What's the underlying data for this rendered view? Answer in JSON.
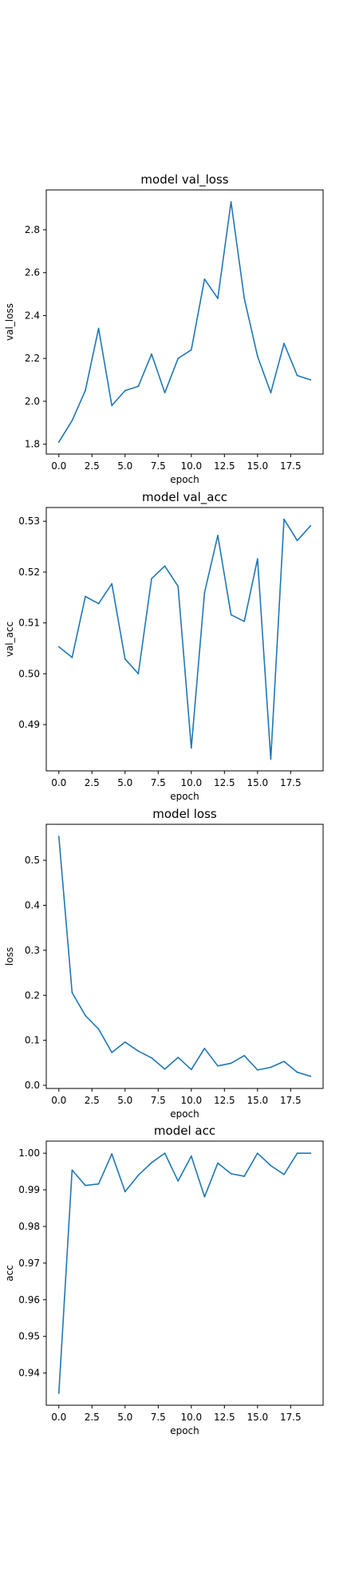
{
  "line_color": "#1f77b4",
  "chart_data": [
    {
      "type": "line",
      "title": "model val_loss",
      "xlabel": "epoch",
      "ylabel": "val_loss",
      "x": [
        0,
        1,
        2,
        3,
        4,
        5,
        6,
        7,
        8,
        9,
        10,
        11,
        12,
        13,
        14,
        15,
        16,
        17,
        18,
        19
      ],
      "series": [
        {
          "values": [
            1.81,
            1.91,
            2.05,
            2.34,
            1.98,
            2.05,
            2.07,
            2.22,
            2.04,
            2.2,
            2.24,
            2.57,
            2.48,
            2.93,
            2.48,
            2.21,
            2.04,
            2.27,
            2.12,
            2.1
          ]
        }
      ],
      "xlim": [
        -0.95,
        19.95
      ],
      "ylim": [
        1.754,
        2.986
      ],
      "xticks": [
        0.0,
        2.5,
        5.0,
        7.5,
        10.0,
        12.5,
        15.0,
        17.5
      ],
      "xtick_labels": [
        "0.0",
        "2.5",
        "5.0",
        "7.5",
        "10.0",
        "12.5",
        "15.0",
        "17.5"
      ],
      "yticks": [
        1.8,
        2.0,
        2.2,
        2.4,
        2.6,
        2.8
      ],
      "ytick_labels": [
        "1.8",
        "2.0",
        "2.2",
        "2.4",
        "2.6",
        "2.8"
      ],
      "grid": false
    },
    {
      "type": "line",
      "title": "model val_acc",
      "xlabel": "epoch",
      "ylabel": "val_acc",
      "x": [
        0,
        1,
        2,
        3,
        4,
        5,
        6,
        7,
        8,
        9,
        10,
        11,
        12,
        13,
        14,
        15,
        16,
        17,
        18,
        19
      ],
      "series": [
        {
          "values": [
            0.5053,
            0.5032,
            0.5152,
            0.5138,
            0.5177,
            0.5029,
            0.5,
            0.5187,
            0.5212,
            0.5172,
            0.4854,
            0.516,
            0.5272,
            0.5116,
            0.5103,
            0.5226,
            0.4832,
            0.5304,
            0.5262,
            0.5291
          ]
        }
      ],
      "xlim": [
        -0.95,
        19.95
      ],
      "ylim": [
        0.4809,
        0.5327
      ],
      "xticks": [
        0.0,
        2.5,
        5.0,
        7.5,
        10.0,
        12.5,
        15.0,
        17.5
      ],
      "xtick_labels": [
        "0.0",
        "2.5",
        "5.0",
        "7.5",
        "10.0",
        "12.5",
        "15.0",
        "17.5"
      ],
      "yticks": [
        0.49,
        0.5,
        0.51,
        0.52,
        0.53
      ],
      "ytick_labels": [
        "0.49",
        "0.50",
        "0.51",
        "0.52",
        "0.53"
      ],
      "grid": false
    },
    {
      "type": "line",
      "title": "model loss",
      "xlabel": "epoch",
      "ylabel": "loss",
      "x": [
        0,
        1,
        2,
        3,
        4,
        5,
        6,
        7,
        8,
        9,
        10,
        11,
        12,
        13,
        14,
        15,
        16,
        17,
        18,
        19
      ],
      "series": [
        {
          "values": [
            0.553,
            0.206,
            0.155,
            0.125,
            0.073,
            0.096,
            0.076,
            0.061,
            0.036,
            0.062,
            0.035,
            0.082,
            0.043,
            0.049,
            0.066,
            0.034,
            0.04,
            0.053,
            0.029,
            0.02
          ]
        }
      ],
      "xlim": [
        -0.95,
        19.95
      ],
      "ylim": [
        -0.007,
        0.58
      ],
      "xticks": [
        0.0,
        2.5,
        5.0,
        7.5,
        10.0,
        12.5,
        15.0,
        17.5
      ],
      "xtick_labels": [
        "0.0",
        "2.5",
        "5.0",
        "7.5",
        "10.0",
        "12.5",
        "15.0",
        "17.5"
      ],
      "yticks": [
        0.0,
        0.1,
        0.2,
        0.3,
        0.4,
        0.5
      ],
      "ytick_labels": [
        "0.0",
        "0.1",
        "0.2",
        "0.3",
        "0.4",
        "0.5"
      ],
      "grid": false
    },
    {
      "type": "line",
      "title": "model acc",
      "xlabel": "epoch",
      "ylabel": "acc",
      "x": [
        0,
        1,
        2,
        3,
        4,
        5,
        6,
        7,
        8,
        9,
        10,
        11,
        12,
        13,
        14,
        15,
        16,
        17,
        18,
        19
      ],
      "series": [
        {
          "values": [
            0.9345,
            0.9954,
            0.9912,
            0.9916,
            0.9998,
            0.9895,
            0.994,
            0.9974,
            1.0,
            0.9924,
            0.9992,
            0.9881,
            0.9973,
            0.9944,
            0.9937,
            1.0,
            0.9966,
            0.9942,
            1.0,
            1.0
          ]
        }
      ],
      "xlim": [
        -0.95,
        19.95
      ],
      "ylim": [
        0.9312,
        1.0033
      ],
      "xticks": [
        0.0,
        2.5,
        5.0,
        7.5,
        10.0,
        12.5,
        15.0,
        17.5
      ],
      "xtick_labels": [
        "0.0",
        "2.5",
        "5.0",
        "7.5",
        "10.0",
        "12.5",
        "15.0",
        "17.5"
      ],
      "yticks": [
        0.94,
        0.95,
        0.96,
        0.97,
        0.98,
        0.99,
        1.0
      ],
      "ytick_labels": [
        "0.94",
        "0.95",
        "0.96",
        "0.97",
        "0.98",
        "0.99",
        "1.00"
      ],
      "grid": false
    }
  ]
}
